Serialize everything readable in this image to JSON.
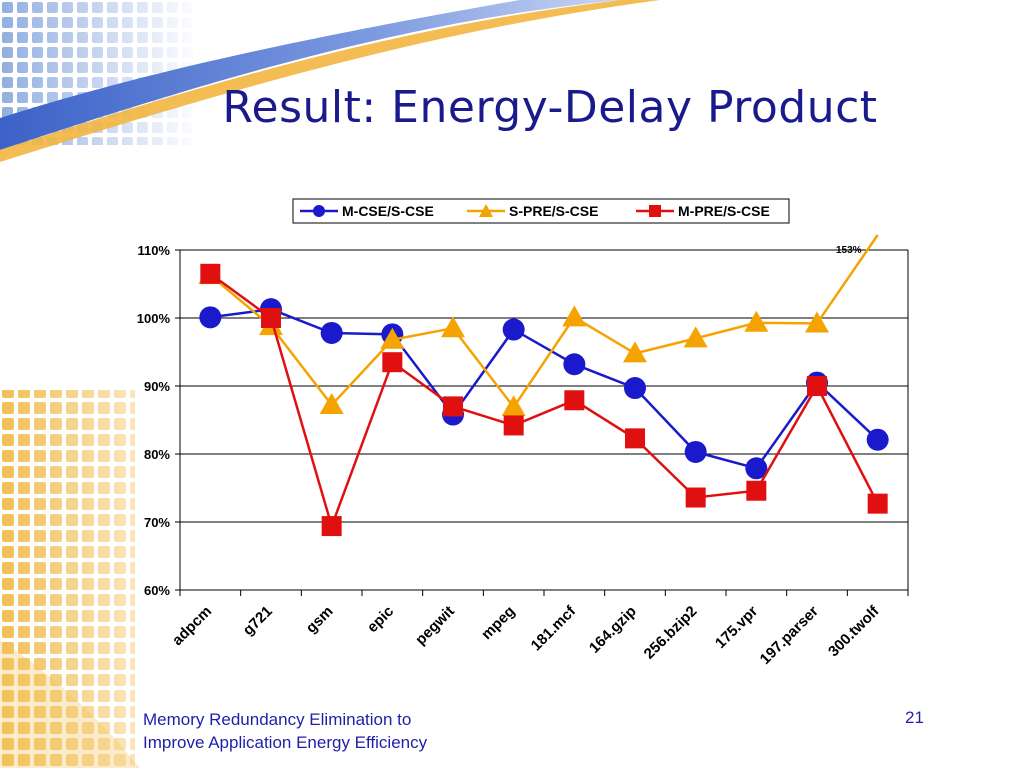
{
  "slide": {
    "title": "Result: Energy-Delay Product",
    "footer_line1": "Memory Redundancy Elimination to",
    "footer_line2": "Improve Application Energy Efficiency",
    "page_number": "21"
  },
  "colors": {
    "title": "#1a1a8c",
    "footer": "#1f1fa8",
    "series1": "#1a1acc",
    "series2": "#f5a300",
    "series3": "#e01010",
    "grid": "#000000"
  },
  "chart_data": {
    "type": "line",
    "title": "",
    "xlabel": "",
    "ylabel": "",
    "categories": [
      "adpcm",
      "g721",
      "gsm",
      "epic",
      "pegwit",
      "mpeg",
      "181.mcf",
      "164.gzip",
      "256.bzip2",
      "175.vpr",
      "197.parser",
      "300.twolf"
    ],
    "series": [
      {
        "name": "M-CSE/S-CSE",
        "marker": "circle",
        "values": [
          100.1,
          101.3,
          97.8,
          97.6,
          85.8,
          98.3,
          93.2,
          89.7,
          80.3,
          77.9,
          90.5,
          82.1
        ]
      },
      {
        "name": "S-PRE/S-CSE",
        "marker": "triangle",
        "values": [
          106.3,
          98.8,
          87.2,
          96.8,
          98.5,
          86.9,
          100.1,
          94.8,
          97.0,
          99.3,
          99.2,
          153
        ]
      },
      {
        "name": "M-PRE/S-CSE",
        "marker": "square",
        "values": [
          106.5,
          100.0,
          69.4,
          93.5,
          87.0,
          84.2,
          87.9,
          82.3,
          73.6,
          74.6,
          90.0,
          72.7
        ]
      }
    ],
    "ylim": [
      60,
      110
    ],
    "yticks": [
      "60%",
      "70%",
      "80%",
      "90%",
      "100%",
      "110%"
    ],
    "annotation": "153%",
    "grid": true,
    "legend": "top"
  }
}
